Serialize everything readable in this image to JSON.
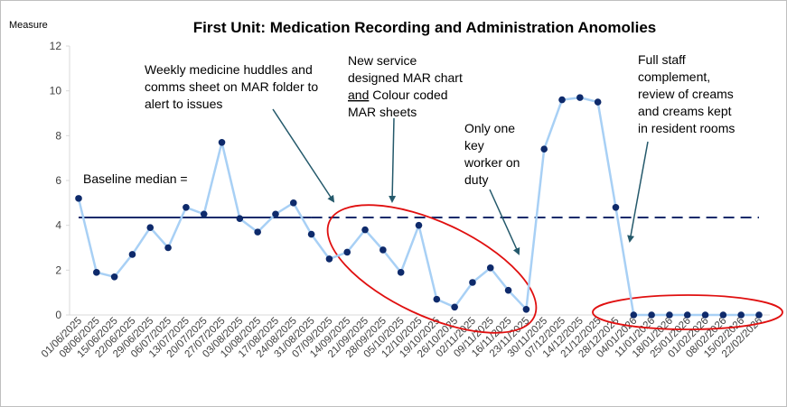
{
  "chart_data": {
    "type": "line",
    "title": "First Unit: Medication Recording and Administration Anomolies",
    "ylabel": "Measure",
    "xlabel": "",
    "ylim": [
      0,
      12
    ],
    "yticks": [
      0,
      2,
      4,
      6,
      8,
      10,
      12
    ],
    "grid": false,
    "legend": "none",
    "categories": [
      "01/06/2025",
      "08/06/2025",
      "15/06/2025",
      "22/06/2025",
      "29/06/2025",
      "06/07/2025",
      "13/07/2025",
      "20/07/2025",
      "27/07/2025",
      "03/08/2025",
      "10/08/2025",
      "17/08/2025",
      "24/08/2025",
      "31/08/2025",
      "07/09/2025",
      "14/09/2025",
      "21/09/2025",
      "28/09/2025",
      "05/10/2025",
      "12/10/2025",
      "19/10/2025",
      "26/10/2025",
      "02/11/2025",
      "09/11/2025",
      "16/11/2025",
      "23/11/2025",
      "30/11/2025",
      "07/12/2025",
      "14/12/2025",
      "21/12/2025",
      "28/12/2025",
      "04/01/2026",
      "11/01/2026",
      "18/01/2026",
      "25/01/2026",
      "01/02/2026",
      "08/02/2026",
      "15/02/2026",
      "22/02/2026"
    ],
    "series": [
      {
        "values": [
          5.2,
          1.9,
          1.7,
          2.7,
          3.9,
          3.0,
          4.8,
          4.5,
          7.7,
          4.3,
          3.7,
          4.5,
          5.0,
          3.6,
          2.5,
          2.8,
          3.8,
          2.9,
          1.9,
          4.0,
          0.7,
          0.35,
          1.45,
          2.1,
          1.1,
          0.25,
          7.4,
          9.6,
          9.7,
          9.5,
          4.8,
          0,
          0,
          0,
          0,
          0,
          0,
          0,
          0
        ],
        "color": "#a8d0f5",
        "marker_color": "#0e2a6b"
      }
    ],
    "median_line": {
      "value": 4.35,
      "color": "#0e2a6b",
      "solid_until_index": 13,
      "dashed_to_index": 38
    },
    "annotations": {
      "baseline": "Baseline median =",
      "huddles": [
        "Weekly medicine huddles and",
        "comms sheet on MAR folder to",
        "alert to issues"
      ],
      "new_service": [
        "New service",
        "designed MAR chart",
        "and",
        " Colour coded",
        "MAR sheets"
      ],
      "key_worker": [
        "Only one",
        "key",
        "worker on",
        "duty"
      ],
      "full_staff": [
        "Full staff",
        "complement,",
        "review of creams",
        "and creams kept",
        "in resident rooms"
      ]
    },
    "colors": {
      "annotation_arrow": "#24596b",
      "highlight_ellipse": "#e01010"
    }
  }
}
